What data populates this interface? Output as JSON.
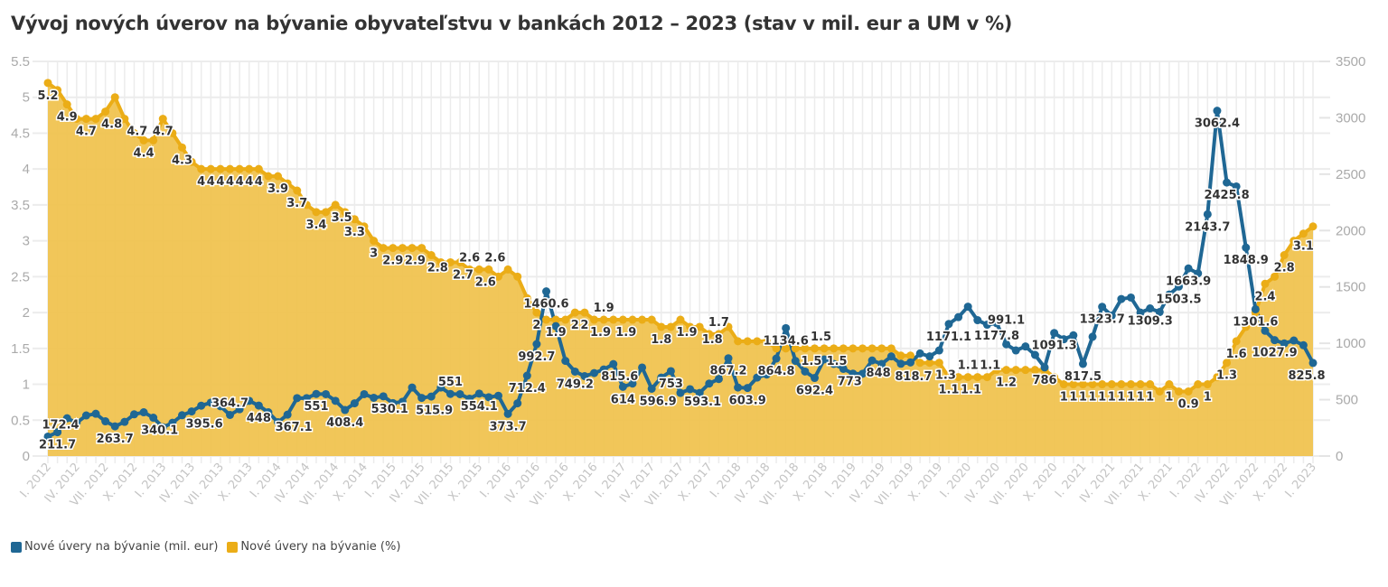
{
  "title": "Vývoj nových úverov na bývanie obyvateľstvu v bankách 2012 – 2023 (stav v mil. eur a UM v %)",
  "legend": [
    {
      "label": "Nové úvery na bývanie (mil. eur)",
      "color": "#1f6794"
    },
    {
      "label": "Nové úvery na bývanie (%)",
      "color": "#ebad17"
    }
  ],
  "chart_data": {
    "type": "line",
    "title": "Vývoj nových úverov na bývanie obyvateľstvu v bankách 2012 – 2023 (stav v mil. eur a UM v %)",
    "x_ticks": [
      "I. 2012",
      "IV. 2012",
      "VII. 2012",
      "X. 2012",
      "I. 2013",
      "IV. 2013",
      "VII. 2013",
      "X. 2013",
      "I. 2014",
      "IV. 2014",
      "VII. 2014",
      "X. 2014",
      "I. 2015",
      "IV. 2015",
      "VII. 2015",
      "X. 2015",
      "I. 2016",
      "IV. 2016",
      "VII. 2016",
      "X. 2016",
      "I. 2017",
      "IV. 2017",
      "VII. 2017",
      "X. 2017",
      "I. 2018",
      "IV. 2018",
      "VII. 2018",
      "X. 2018",
      "I. 2019",
      "IV. 2019",
      "VII. 2019",
      "X. 2019",
      "I. 2020",
      "IV. 2020",
      "VII. 2020",
      "X. 2020",
      "I. 2021",
      "IV. 2021",
      "VII. 2021",
      "X. 2021",
      "I. 2022",
      "IV. 2022",
      "VII. 2022",
      "X. 2022",
      "I. 2023"
    ],
    "x_tick_step_months": 3,
    "y_left": {
      "label": "%",
      "ylim": [
        0,
        5.5
      ],
      "ticks": [
        "0",
        "0.5",
        "1",
        "1.5",
        "2",
        "2.5",
        "3",
        "3.5",
        "4",
        "4.5",
        "5",
        "5.5"
      ]
    },
    "y_right": {
      "label": "mil. eur",
      "ylim": [
        0,
        3500
      ],
      "ticks": [
        "0",
        "500",
        "1000",
        "1500",
        "2000",
        "2500",
        "3000",
        "3500"
      ]
    },
    "grid": true,
    "legend_position": "bottom-left",
    "series": [
      {
        "name": "Nové úvery na bývanie (mil. eur)",
        "axis": "right",
        "type": "line",
        "color": "#1f6794",
        "values": [
          172.4,
          211.7,
          335,
          295,
          360,
          375,
          308,
          263.7,
          303,
          370,
          388,
          340.1,
          255,
          295,
          362,
          395.6,
          447,
          474,
          442,
          364.7,
          415,
          490,
          448,
          388,
          300,
          367.1,
          514,
          514,
          551,
          549,
          490,
          408.4,
          468,
          549,
          517,
          530.1,
          470,
          482,
          608,
          515.9,
          528,
          608,
          551,
          549,
          509,
          554.1,
          522,
          535,
          373.7,
          468,
          712.4,
          992.7,
          1460.6,
          1152,
          844,
          749.2,
          709,
          736,
          768,
          815.6,
          614,
          643,
          785,
          596.9,
          696,
          753,
          560,
          593.1,
          560,
          643,
          683,
          867.2,
          608,
          603.9,
          696,
          723,
          864.8,
          1134.6,
          844,
          750,
          692.4,
          857,
          817,
          773,
          731,
          730,
          848,
          817,
          884,
          818.7,
          830,
          910,
          884,
          937,
          1171.1,
          1232,
          1325,
          1205,
          1165,
          1177.8,
          991.1,
          937,
          972,
          897,
          786,
          1091.3,
          1036,
          1071,
          817.5,
          1058,
          1323.7,
          1245,
          1393,
          1406,
          1272,
          1309.3,
          1277,
          1433,
          1503.5,
          1663.9,
          1620,
          2143.7,
          3062.4,
          2425.8,
          2391,
          1848.9,
          1301.6,
          1111,
          1027.9,
          999,
          1025,
          983,
          825.8
        ],
        "labeled_indices": [
          0,
          1,
          7,
          11,
          15,
          19,
          22,
          25,
          28,
          31,
          35,
          39,
          42,
          45,
          48,
          50,
          51,
          52,
          55,
          59,
          60,
          63,
          65,
          67,
          71,
          73,
          76,
          77,
          80,
          83,
          86,
          89,
          94,
          99,
          100,
          104,
          105,
          108,
          110,
          115,
          118,
          119,
          121,
          122,
          123,
          125,
          126,
          128,
          132
        ]
      },
      {
        "name": "Nové úvery na bývanie (%)",
        "axis": "left",
        "type": "area",
        "color": "#ebad17",
        "fill": "#f0c350",
        "values": [
          5.2,
          5.1,
          4.9,
          4.7,
          4.7,
          4.7,
          4.8,
          5.0,
          4.7,
          4.5,
          4.4,
          4.4,
          4.7,
          4.5,
          4.3,
          4.1,
          4,
          4,
          4,
          4,
          4,
          4,
          4,
          3.9,
          3.9,
          3.8,
          3.7,
          3.5,
          3.4,
          3.4,
          3.5,
          3.4,
          3.3,
          3.2,
          3.0,
          2.9,
          2.9,
          2.9,
          2.9,
          2.9,
          2.8,
          2.7,
          2.7,
          2.7,
          2.6,
          2.6,
          2.6,
          2.5,
          2.6,
          2.5,
          2.2,
          2.0,
          1.9,
          1.9,
          1.9,
          2.0,
          2.0,
          1.9,
          1.9,
          1.9,
          1.9,
          1.9,
          1.9,
          1.9,
          1.8,
          1.8,
          1.9,
          1.8,
          1.8,
          1.7,
          1.7,
          1.8,
          1.6,
          1.6,
          1.6,
          1.6,
          1.5,
          1.5,
          1.5,
          1.5,
          1.5,
          1.5,
          1.5,
          1.5,
          1.5,
          1.5,
          1.5,
          1.5,
          1.5,
          1.4,
          1.4,
          1.3,
          1.3,
          1.3,
          1.1,
          1.1,
          1.1,
          1.1,
          1.1,
          1.2,
          1.2,
          1.2,
          1.2,
          1.2,
          1.2,
          1.1,
          1,
          1,
          1,
          1,
          1,
          1,
          1,
          1,
          1,
          1,
          0.9,
          1,
          0.9,
          0.9,
          1,
          1,
          1.1,
          1.3,
          1.6,
          1.8,
          2.0,
          2.4,
          2.5,
          2.8,
          3.0,
          3.1,
          3.2
        ],
        "labeled_indices": [
          0,
          2,
          4,
          6,
          8,
          10,
          12,
          14,
          16,
          17,
          18,
          19,
          20,
          21,
          22,
          24,
          26,
          28,
          30,
          32,
          34,
          36,
          37,
          40,
          42,
          44,
          45,
          46,
          51,
          53,
          55,
          56,
          57,
          58,
          59,
          64,
          66,
          68,
          70,
          79,
          80,
          81,
          93,
          94,
          95,
          96,
          97,
          100,
          106,
          107,
          108,
          109,
          110,
          111,
          112,
          113,
          114,
          115,
          117,
          119,
          121,
          123,
          124,
          127,
          129,
          131
        ]
      }
    ]
  }
}
